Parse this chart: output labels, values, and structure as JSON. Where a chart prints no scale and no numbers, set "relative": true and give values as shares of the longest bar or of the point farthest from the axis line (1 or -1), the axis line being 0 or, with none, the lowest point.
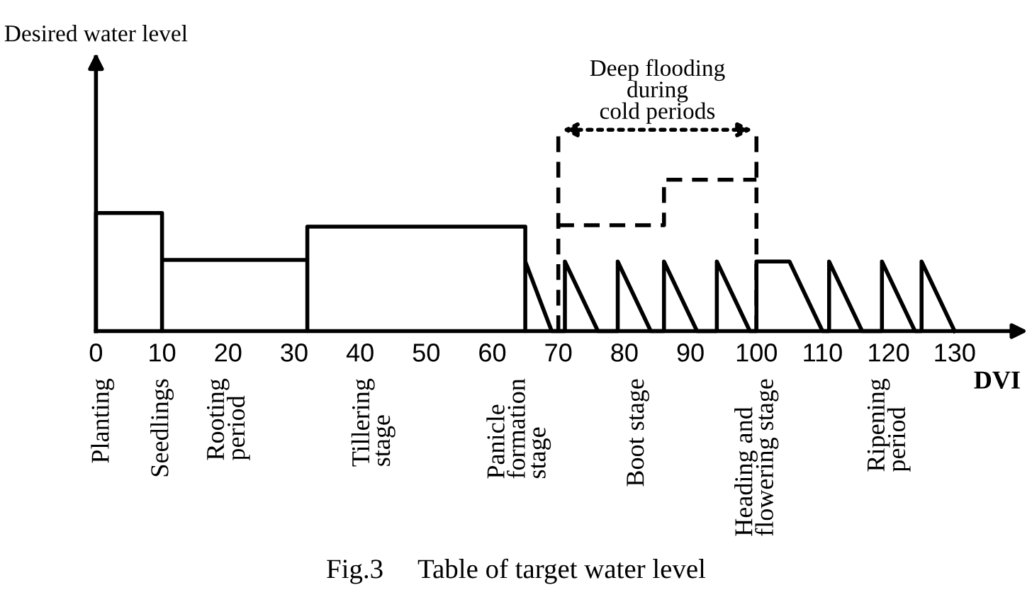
{
  "chart_data": {
    "type": "line",
    "relative": true,
    "xlabel": "DVI",
    "xlim": [
      0,
      140
    ],
    "xticks": [
      0,
      10,
      20,
      30,
      40,
      50,
      60,
      70,
      80,
      90,
      100,
      110,
      120,
      130
    ],
    "series": [
      {
        "color": "#000000",
        "line_style": "solid",
        "x": [
          0,
          0,
          10,
          10,
          10,
          32,
          32,
          32,
          65,
          65,
          65,
          69,
          71,
          71,
          76,
          79,
          79,
          84,
          86,
          86,
          91,
          94,
          94,
          99,
          100,
          100,
          105,
          110,
          111,
          111,
          116,
          119,
          119,
          124,
          125,
          125,
          130
        ],
        "values": [
          0,
          0.78,
          0.78,
          0,
          0.47,
          0.47,
          0,
          0.69,
          0.69,
          0,
          0.46,
          0,
          0,
          0.46,
          0,
          0,
          0.46,
          0,
          0,
          0.46,
          0,
          0,
          0.46,
          0,
          0,
          0.46,
          0.46,
          0,
          0,
          0.46,
          0,
          0,
          0.46,
          0,
          0,
          0.46,
          0
        ]
      },
      {
        "color": "#000000",
        "line_style": "dashed",
        "x": [
          70,
          86,
          86,
          100
        ],
        "values": [
          0.7,
          0.7,
          1,
          1
        ]
      }
    ],
    "ref_lines": [
      {
        "axis": "x",
        "value": 70,
        "line_style": "dashed"
      },
      {
        "axis": "x",
        "value": 100,
        "line_style": "dashed"
      }
    ],
    "annotations": [
      "Desired water level",
      "Deep flooding\nduring\ncold periods",
      "Fig.3     Table of target water level",
      "Planting",
      "Seedlings",
      "Rooting\nperiod",
      "Tillering\nstage",
      "Panicle\nformation\nstage",
      "Boot stage",
      "Heading and\nflowering stage",
      "Ripening\nperiod"
    ]
  }
}
